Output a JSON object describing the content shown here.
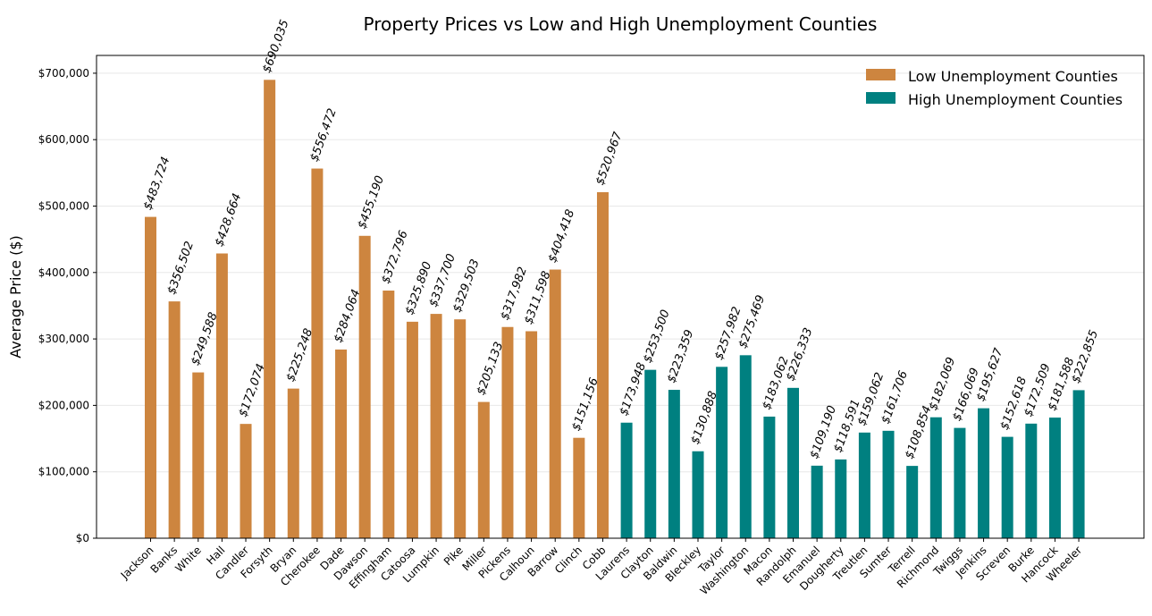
{
  "chart_data": {
    "type": "bar",
    "title": "Property Prices vs Low and High Unemployment Counties",
    "xlabel": "",
    "ylabel": "Average Price ($)",
    "ylim": [
      0,
      725000
    ],
    "yticks": [
      0,
      100000,
      200000,
      300000,
      400000,
      500000,
      600000,
      700000
    ],
    "ytick_labels": [
      "$0",
      "$100,000",
      "$200,000",
      "$300,000",
      "$400,000",
      "$500,000",
      "$600,000",
      "$700,000"
    ],
    "grid": "horizontal",
    "legend_position": "top-right",
    "series": [
      {
        "name": "Low Unemployment Counties",
        "color": "#CD853F",
        "categories": [
          "Jackson",
          "Banks",
          "White",
          "Hall",
          "Candler",
          "Forsyth",
          "Bryan",
          "Cherokee",
          "Dade",
          "Dawson",
          "Effingham",
          "Catoosa",
          "Lumpkin",
          "Pike",
          "Miller",
          "Pickens",
          "Calhoun",
          "Barrow",
          "Clinch",
          "Cobb"
        ],
        "values": [
          483724,
          356502,
          249588,
          428664,
          172074,
          690035,
          225248,
          556472,
          284064,
          455190,
          372796,
          325890,
          337700,
          329503,
          205133,
          317982,
          311598,
          404418,
          151156,
          520967
        ],
        "labels": [
          "$483,724",
          "$356,502",
          "$249,588",
          "$428,664",
          "$172,074",
          "$690,035",
          "$225,248",
          "$556,472",
          "$284,064",
          "$455,190",
          "$372,796",
          "$325,890",
          "$337,700",
          "$329,503",
          "$205,133",
          "$317,982",
          "$311,598",
          "$404,418",
          "$151,156",
          "$520,967"
        ]
      },
      {
        "name": "High Unemployment Counties",
        "color": "#008080",
        "categories": [
          "Laurens",
          "Clayton",
          "Baldwin",
          "Bleckley",
          "Taylor",
          "Washington",
          "Macon",
          "Randolph",
          "Emanuel",
          "Dougherty",
          "Treutlen",
          "Sumter",
          "Terrell",
          "Richmond",
          "Twiggs",
          "Jenkins",
          "Screven",
          "Burke",
          "Hancock",
          "Wheeler"
        ],
        "values": [
          173948,
          253500,
          223359,
          130888,
          257982,
          275469,
          183062,
          226333,
          109190,
          118591,
          159062,
          161706,
          108854,
          182069,
          166069,
          195627,
          152618,
          172509,
          181588,
          222855
        ],
        "labels": [
          "$173,948",
          "$253,500",
          "$223,359",
          "$130,888",
          "$257,982",
          "$275,469",
          "$183,062",
          "$226,333",
          "$109,190",
          "$118,591",
          "$159,062",
          "$161,706",
          "$108,854",
          "$182,069",
          "$166,069",
          "$195,627",
          "$152,618",
          "$172,509",
          "$181,588",
          "$222,855"
        ]
      }
    ]
  }
}
